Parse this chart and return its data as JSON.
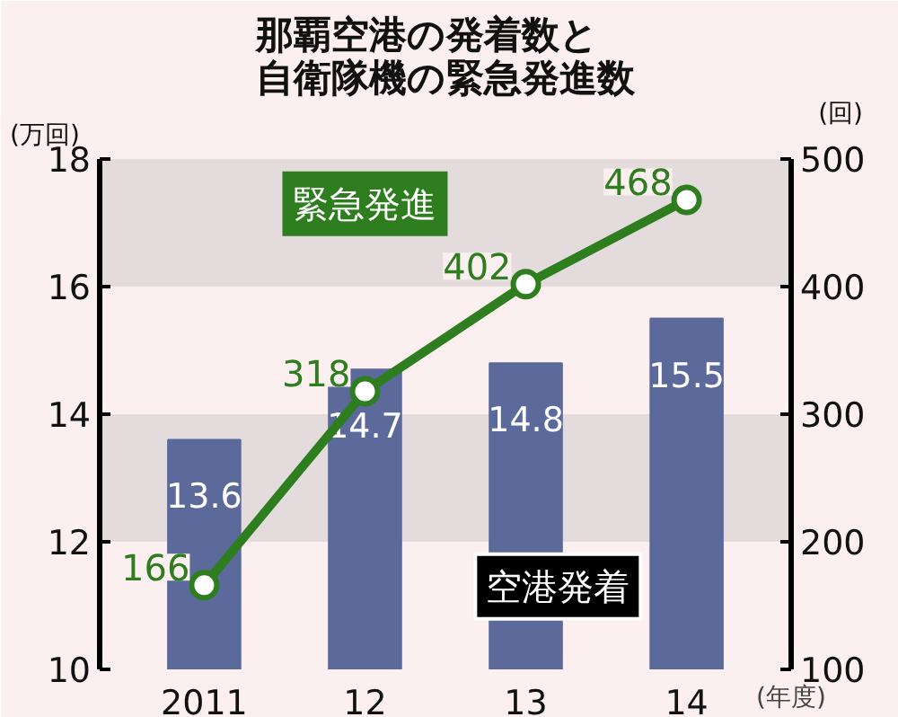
{
  "chart_data": {
    "type": "bar",
    "title": "那覇空港の発着数と自衛隊機の緊急発進数",
    "categories": [
      "2011",
      "12",
      "13",
      "14"
    ],
    "xlabel": "(年度)",
    "ylabel": "(万回)",
    "y2label": "(回)",
    "series": [
      {
        "name": "空港発着",
        "color": "#5b6a9a",
        "values": [
          13.6,
          14.7,
          14.8,
          15.5
        ]
      },
      {
        "name": "緊急発進",
        "type": "line",
        "axis": "y2",
        "color": "#2e7d1f",
        "values": [
          166,
          318,
          402,
          468
        ]
      }
    ],
    "ylim": [
      10,
      18
    ],
    "yticks": [
      10,
      12,
      14,
      16,
      18
    ],
    "y2lim": [
      100,
      500
    ],
    "y2ticks": [
      100,
      200,
      300,
      400,
      500
    ],
    "bands": [
      {
        "axis": "y",
        "from": 12,
        "to": 14,
        "color": "#e4dcdc"
      },
      {
        "axis": "y",
        "from": 16,
        "to": 18,
        "color": "#e4dcdc"
      }
    ],
    "data_labels": true,
    "marker": "circle",
    "line_style": "solid"
  }
}
